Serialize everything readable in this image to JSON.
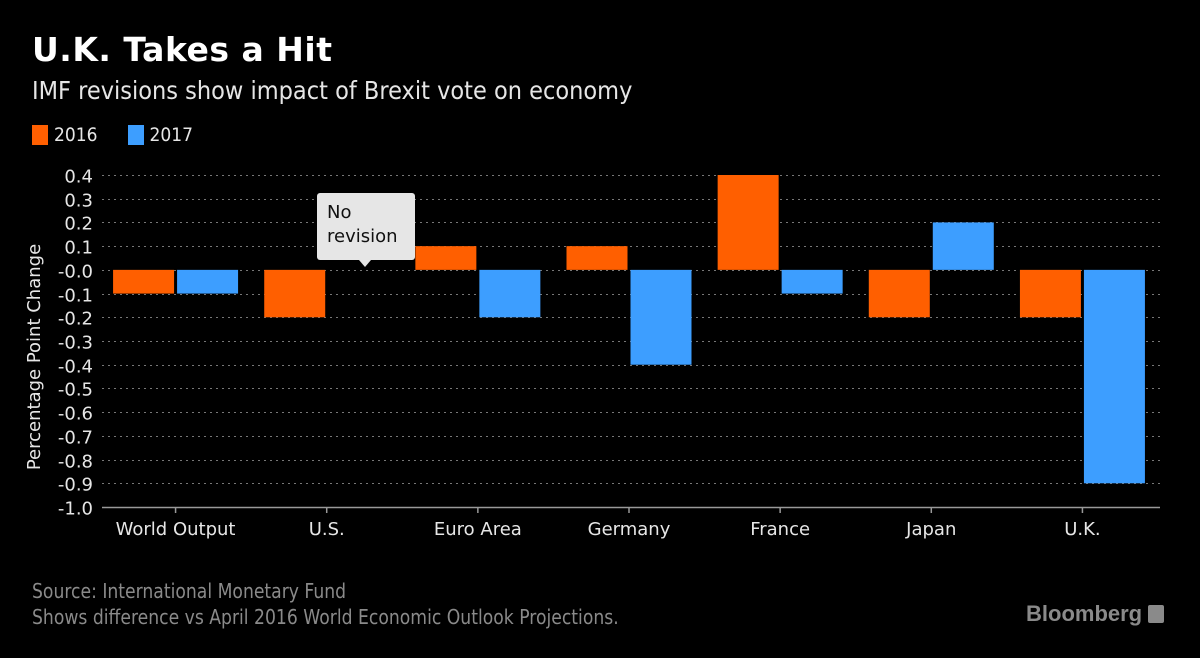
{
  "title": "U.K. Takes a Hit",
  "subtitle": "IMF revisions show impact of Brexit vote on economy",
  "annotation": {
    "line1": "No",
    "line2": "revision",
    "target_category": "U.S.",
    "target_series": "2017"
  },
  "footer": {
    "source": "Source: International Monetary Fund",
    "note": "Shows difference vs April 2016 World Economic Outlook Projections.",
    "brand": "Bloomberg"
  },
  "colors": {
    "2016": "#ff5f00",
    "2017": "#3d9eff",
    "grid": "#777777",
    "axis": "#999999"
  },
  "chart_data": {
    "type": "bar",
    "title": "U.K. Takes a Hit",
    "subtitle": "IMF revisions show impact of Brexit vote on economy",
    "xlabel": "",
    "ylabel": "Percentage Point Change",
    "ylim": [
      -1.0,
      0.4
    ],
    "yticks": [
      0.4,
      0.3,
      0.2,
      0.1,
      0.0,
      -0.1,
      -0.2,
      -0.3,
      -0.4,
      -0.5,
      -0.6,
      -0.7,
      -0.8,
      -0.9,
      -1.0
    ],
    "ytick_labels": [
      "0.4",
      "0.3",
      "0.2",
      "0.1",
      "-0.0",
      "-0.1",
      "-0.2",
      "-0.3",
      "-0.4",
      "-0.5",
      "-0.6",
      "-0.7",
      "-0.8",
      "-0.9",
      "-1.0"
    ],
    "grid": true,
    "legend_position": "top-left",
    "categories": [
      "World Output",
      "U.S.",
      "Euro Area",
      "Germany",
      "France",
      "Japan",
      "U.K."
    ],
    "series": [
      {
        "name": "2016",
        "values": [
          -0.1,
          -0.2,
          0.1,
          0.1,
          0.4,
          -0.2,
          -0.2
        ]
      },
      {
        "name": "2017",
        "values": [
          -0.1,
          0.0,
          -0.2,
          -0.4,
          -0.1,
          0.2,
          -0.9
        ]
      }
    ]
  }
}
